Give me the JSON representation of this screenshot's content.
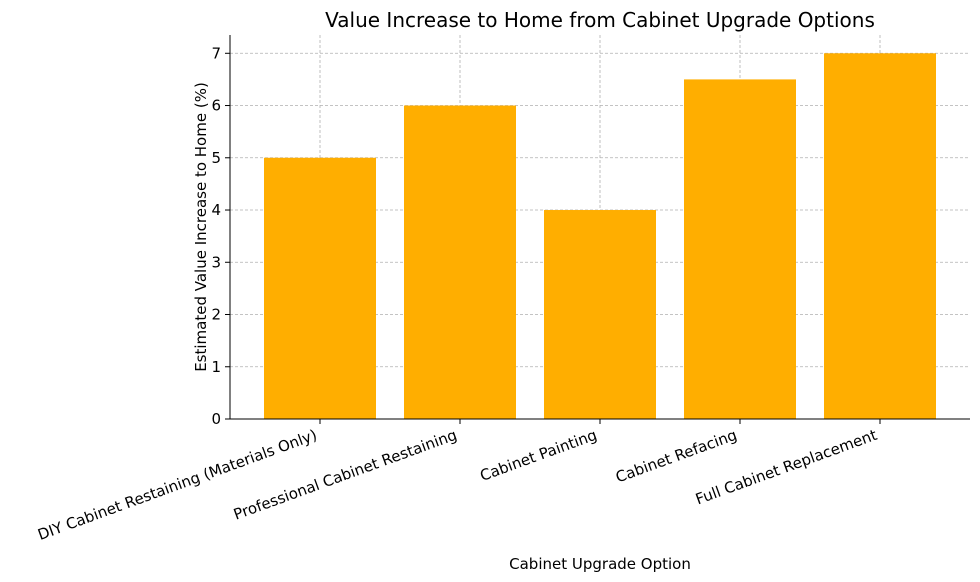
{
  "chart_data": {
    "type": "bar",
    "title": "Value Increase to Home from Cabinet Upgrade Options",
    "xlabel": "Cabinet Upgrade Option",
    "ylabel": "Estimated Value Increase to Home (%)",
    "categories": [
      "DIY Cabinet Restaining (Materials Only)",
      "Professional Cabinet Restaining",
      "Cabinet Painting",
      "Cabinet Refacing",
      "Full Cabinet Replacement"
    ],
    "values": [
      5,
      6,
      4,
      6.5,
      7
    ],
    "ylim": [
      0,
      7.35
    ],
    "yticks": [
      0,
      1,
      2,
      3,
      4,
      5,
      6,
      7
    ],
    "grid": true,
    "bar_color": "#FFAE00",
    "grid_color": "#b0b0b0"
  }
}
